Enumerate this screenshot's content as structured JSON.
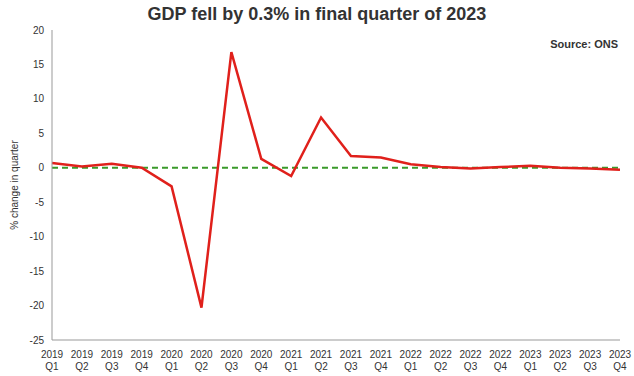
{
  "chart_data": {
    "type": "line",
    "title": "GDP fell by 0.3% in final quarter of 2023",
    "subtitle": "Source: ONS",
    "y_label": "% change in quarter",
    "categories": [
      "2019 Q1",
      "2019 Q2",
      "2019 Q3",
      "2019 Q4",
      "2020 Q1",
      "2020 Q2",
      "2020 Q3",
      "2020 Q4",
      "2021 Q1",
      "2021 Q2",
      "2021 Q3",
      "2021 Q4",
      "2022 Q1",
      "2022 Q2",
      "2022 Q3",
      "2022 Q4",
      "2023 Q1",
      "2023 Q2",
      "2023 Q3",
      "2023 Q4"
    ],
    "values": [
      0.7,
      0.2,
      0.6,
      0.0,
      -2.7,
      -20.3,
      16.8,
      1.3,
      -1.2,
      7.3,
      1.7,
      1.5,
      0.5,
      0.1,
      -0.1,
      0.1,
      0.3,
      0.0,
      -0.1,
      -0.3
    ],
    "color": "#e0201b",
    "ylim": [
      -25,
      20
    ],
    "yticks": [
      -25,
      -20,
      -15,
      -10,
      -5,
      0,
      5,
      10,
      15,
      20
    ],
    "grid": false,
    "reference_line": {
      "y": 0
    }
  }
}
